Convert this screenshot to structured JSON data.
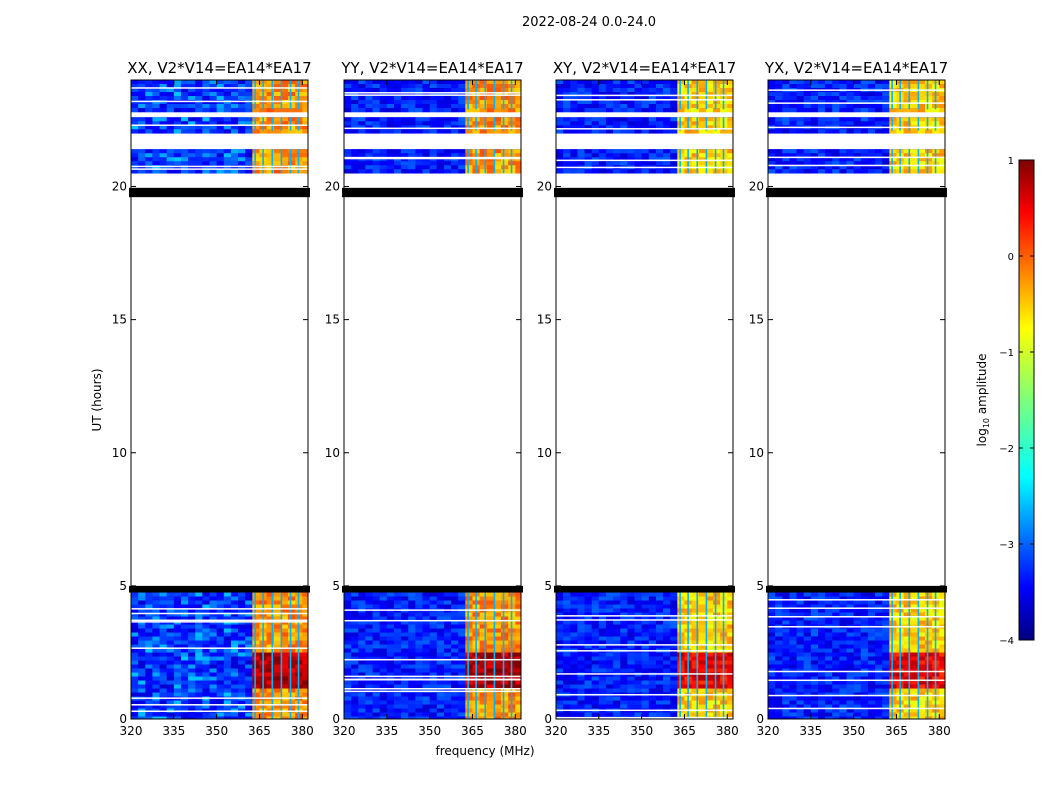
{
  "chart_data": {
    "type": "heatmap",
    "suptitle": "2022-08-24 0.0-24.0",
    "xlabel": "frequency (MHz)",
    "ylabel": "UT (hours)",
    "xlim": [
      320,
      382
    ],
    "ylim": [
      0,
      24
    ],
    "xticks": [
      320,
      335,
      350,
      365,
      380
    ],
    "yticks": [
      0,
      5,
      10,
      15,
      20
    ],
    "panels": [
      {
        "title": "XX, V2*V14=EA14*EA17"
      },
      {
        "title": "YY, V2*V14=EA14*EA17"
      },
      {
        "title": "XY, V2*V14=EA14*EA17"
      },
      {
        "title": "YX, V2*V14=EA14*EA17"
      }
    ],
    "data_segments_hours": [
      [
        0,
        4.75
      ],
      [
        20.5,
        21.4
      ],
      [
        22.1,
        22.6
      ],
      [
        22.9,
        24
      ]
    ],
    "flagged_bands_hours": [
      [
        4.75,
        5.0
      ],
      [
        19.6,
        19.95
      ]
    ],
    "bright_band_mhz": [
      360.5,
      380.5
    ],
    "colorbar": {
      "label": "log10 amplitude",
      "range": [
        -4,
        1
      ],
      "ticks": [
        1,
        0,
        -1,
        -2,
        -3,
        -4
      ],
      "tick_labels": [
        "1",
        "0",
        "−1",
        "−2",
        "−3",
        "−4"
      ],
      "colormap": "jet"
    }
  }
}
